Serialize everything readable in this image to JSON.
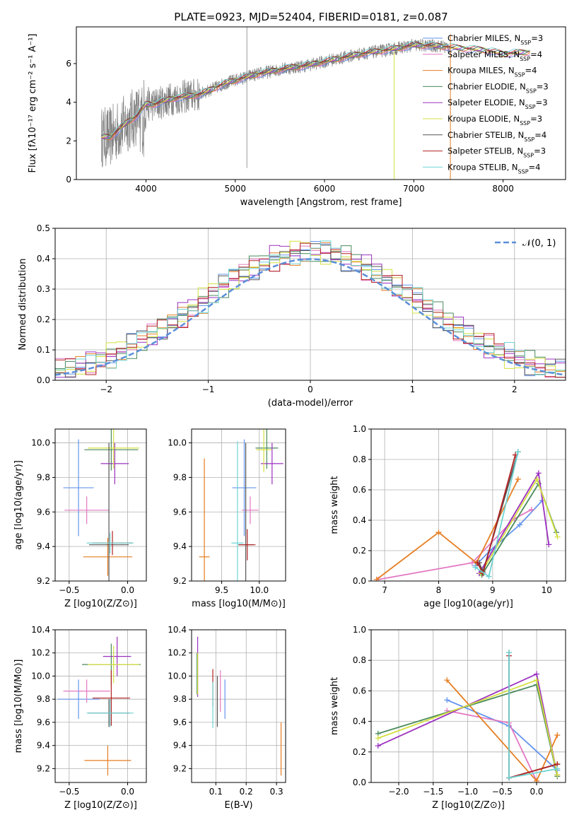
{
  "figure": {
    "title": "PLATE=0923, MJD=52404, FIBERID=0181, z=0.087",
    "model_names": [
      "Chabrier MILES",
      "Salpeter MILES",
      "Kroupa MILES",
      "Chabrier ELODIE",
      "Salpeter ELODIE",
      "Kroupa ELODIE",
      "Chabrier STELIB",
      "Salpeter STELIB",
      "Kroupa STELIB"
    ],
    "model_colors": [
      "#6495ed",
      "#e377c2",
      "#e67e22",
      "#4a8a5c",
      "#9b30c0",
      "#d4e040",
      "#555555",
      "#b22222",
      "#6fd4d4"
    ],
    "observed_color": "#808080",
    "normal_color": "#5b8fd9"
  },
  "chart_data": [
    {
      "type": "line",
      "panel": "spectrum",
      "xlabel": "wavelength [Angstrom, rest frame]",
      "ylabel": "Flux [fλ10⁻¹⁷ erg cm⁻² s⁻¹ A⁻¹]",
      "xlim": [
        3220,
        8700
      ],
      "ylim": [
        0,
        7.9
      ],
      "xticks": [
        4000,
        5000,
        6000,
        7000,
        8000
      ],
      "yticks": [
        0,
        2,
        4,
        6
      ],
      "grid": false,
      "legend_position": "top-right",
      "legend": [
        "Chabrier MILES, NSSP=3",
        "Salpeter MILES, NSSP=4",
        "Kroupa MILES, NSSP=4",
        "Chabrier ELODIE, NSSP=3",
        "Salpeter ELODIE, NSSP=3",
        "Kroupa ELODIE, NSSP=3",
        "Chabrier STELIB, NSSP=4",
        "Salpeter STELIB, NSSP=3",
        "Kroupa STELIB, NSSP=4"
      ],
      "continuum": {
        "x": [
          3500,
          3600,
          3700,
          3800,
          3900,
          4000,
          4100,
          4300,
          4600,
          4900,
          5200,
          5500,
          5800,
          6100,
          6400,
          6700,
          7000,
          7300,
          7500,
          7800,
          8000,
          8300
        ],
        "y": [
          2.2,
          2.2,
          2.6,
          3.0,
          3.3,
          3.9,
          3.9,
          4.2,
          4.4,
          5.0,
          5.4,
          5.7,
          5.9,
          6.2,
          6.5,
          6.7,
          6.95,
          6.9,
          6.8,
          6.7,
          6.5,
          6.6
        ]
      },
      "model_x_range": [
        3500,
        8300
      ],
      "observed_x_range": [
        3500,
        7400
      ]
    },
    {
      "type": "bar",
      "panel": "residual_histogram",
      "xlabel": "(data-model)/error",
      "ylabel": "Normed distribution",
      "xlim": [
        -2.5,
        2.5
      ],
      "ylim": [
        0,
        0.5
      ],
      "xticks": [
        -2,
        -1,
        0,
        1,
        2
      ],
      "yticks": [
        0.0,
        0.1,
        0.2,
        0.3,
        0.4,
        0.5
      ],
      "bin_width": 0.1,
      "grid": true,
      "legend_position": "top-right",
      "legend": [
        "𝒩(0, 1)"
      ]
    },
    {
      "type": "scatter",
      "panel": "age_vs_Z",
      "xlabel": "Z [log10(Z/Z⊙)]",
      "ylabel": "age  [log10(age/yr)]",
      "xlim": [
        -0.62,
        0.16
      ],
      "ylim": [
        9.2,
        10.08
      ],
      "xticks": [
        -0.5,
        0.0
      ],
      "yticks": [
        9.2,
        9.4,
        9.6,
        9.8,
        10.0
      ],
      "grid": true,
      "points": [
        {
          "model": 0,
          "x": -0.42,
          "y": 9.74,
          "xerr": 0.13,
          "yerr": 0.28
        },
        {
          "model": 1,
          "x": -0.35,
          "y": 9.61,
          "xerr": 0.19,
          "yerr": 0.08
        },
        {
          "model": 2,
          "x": -0.17,
          "y": 9.34,
          "xerr": 0.21,
          "yerr": 0.11
        },
        {
          "model": 3,
          "x": -0.14,
          "y": 9.96,
          "xerr": 0.23,
          "yerr": 0.12
        },
        {
          "model": 4,
          "x": -0.11,
          "y": 9.88,
          "xerr": 0.12,
          "yerr": 0.12
        },
        {
          "model": 5,
          "x": -0.12,
          "y": 9.97,
          "xerr": 0.22,
          "yerr": 0.12
        },
        {
          "model": 6,
          "x": -0.16,
          "y": 9.41,
          "xerr": 0.17,
          "yerr": 0.59
        },
        {
          "model": 7,
          "x": -0.13,
          "y": 9.42,
          "xerr": 0.17,
          "yerr": 0.07
        },
        {
          "model": 8,
          "x": -0.15,
          "y": 9.42,
          "xerr": 0.2,
          "yerr": 0.06
        }
      ]
    },
    {
      "type": "scatter",
      "panel": "age_vs_mass",
      "xlabel": "mass [log10(M/M⊙)]",
      "ylabel": "",
      "xlim": [
        9.1,
        10.35
      ],
      "ylim": [
        9.2,
        10.08
      ],
      "xticks": [
        9.5,
        10.0
      ],
      "yticks": [
        9.2,
        9.4,
        9.6,
        9.8,
        10.0
      ],
      "grid": true,
      "points": [
        {
          "model": 0,
          "x": 9.8,
          "y": 9.74,
          "xerr": 0.16,
          "yerr": 0.28
        },
        {
          "model": 1,
          "x": 9.88,
          "y": 9.61,
          "xerr": 0.11,
          "yerr": 0.08
        },
        {
          "model": 2,
          "x": 9.27,
          "y": 9.34,
          "xerr": 0.07,
          "yerr": 0.57
        },
        {
          "model": 3,
          "x": 10.1,
          "y": 9.97,
          "xerr": 0.15,
          "yerr": 0.12
        },
        {
          "model": 4,
          "x": 10.17,
          "y": 9.88,
          "xerr": 0.15,
          "yerr": 0.12
        },
        {
          "model": 5,
          "x": 10.06,
          "y": 9.96,
          "xerr": 0.1,
          "yerr": 0.13
        },
        {
          "model": 6,
          "x": 9.82,
          "y": 9.41,
          "xerr": 0.1,
          "yerr": 0.59
        },
        {
          "model": 7,
          "x": 9.84,
          "y": 9.41,
          "xerr": 0.11,
          "yerr": 0.09
        },
        {
          "model": 8,
          "x": 9.71,
          "y": 9.42,
          "xerr": 0.08,
          "yerr": 0.59
        }
      ]
    },
    {
      "type": "line",
      "panel": "mass_weight_vs_age",
      "xlabel": "age  [log10(age/yr)]",
      "ylabel": "mass weight",
      "xlim": [
        6.75,
        10.35
      ],
      "ylim": [
        0,
        1.0
      ],
      "xticks": [
        7,
        8,
        9,
        10
      ],
      "yticks": [
        0.0,
        0.2,
        0.4,
        0.6,
        0.8,
        1.0
      ],
      "grid": true,
      "series": [
        {
          "model": 0,
          "x": [
            8.68,
            8.95,
            9.5,
            9.92
          ],
          "y": [
            0.1,
            0.2,
            0.37,
            0.53
          ]
        },
        {
          "model": 1,
          "x": [
            6.88,
            8.62,
            9.4,
            9.72
          ],
          "y": [
            0.01,
            0.12,
            0.41,
            0.47
          ]
        },
        {
          "model": 2,
          "x": [
            6.85,
            8.0,
            8.7,
            9.47
          ],
          "y": [
            0.01,
            0.32,
            0.12,
            0.67
          ]
        },
        {
          "model": 3,
          "x": [
            8.8,
            9.85,
            10.18
          ],
          "y": [
            0.04,
            0.64,
            0.32
          ]
        },
        {
          "model": 4,
          "x": [
            8.75,
            9.85,
            10.04
          ],
          "y": [
            0.05,
            0.71,
            0.24
          ]
        },
        {
          "model": 5,
          "x": [
            8.78,
            9.82,
            10.2
          ],
          "y": [
            0.05,
            0.67,
            0.29
          ]
        },
        {
          "model": 6,
          "x": [
            8.75,
            8.82,
            9.47
          ],
          "y": [
            0.12,
            0.06,
            0.85
          ]
        },
        {
          "model": 7,
          "x": [
            8.72,
            8.82,
            9.42
          ],
          "y": [
            0.12,
            0.05,
            0.83
          ]
        },
        {
          "model": 8,
          "x": [
            8.68,
            8.93,
            9.47
          ],
          "y": [
            0.09,
            0.03,
            0.85
          ]
        }
      ]
    },
    {
      "type": "scatter",
      "panel": "mass_vs_Z",
      "xlabel": "Z [log10(Z/Z⊙)]",
      "ylabel": "mass [log10(M/M⊙)]",
      "xlim": [
        -0.62,
        0.16
      ],
      "ylim": [
        9.08,
        10.4
      ],
      "xticks": [
        -0.5,
        0.0
      ],
      "yticks": [
        9.2,
        9.4,
        9.6,
        9.8,
        10.0,
        10.2,
        10.4
      ],
      "grid": true,
      "points": [
        {
          "model": 0,
          "x": -0.42,
          "y": 9.8,
          "xerr": 0.18,
          "yerr": 0.17
        },
        {
          "model": 1,
          "x": -0.35,
          "y": 9.87,
          "xerr": 0.2,
          "yerr": 0.1
        },
        {
          "model": 2,
          "x": -0.17,
          "y": 9.27,
          "xerr": 0.2,
          "yerr": 0.13
        },
        {
          "model": 3,
          "x": -0.14,
          "y": 10.1,
          "xerr": 0.25,
          "yerr": 0.18
        },
        {
          "model": 4,
          "x": -0.09,
          "y": 10.17,
          "xerr": 0.12,
          "yerr": 0.17
        },
        {
          "model": 5,
          "x": -0.12,
          "y": 10.1,
          "xerr": 0.22,
          "yerr": 0.16
        },
        {
          "model": 6,
          "x": -0.16,
          "y": 9.68,
          "xerr": 0.18,
          "yerr": 0.12
        },
        {
          "model": 7,
          "x": -0.14,
          "y": 9.81,
          "xerr": 0.16,
          "yerr": 0.24
        },
        {
          "model": 8,
          "x": -0.15,
          "y": 9.68,
          "xerr": 0.2,
          "yerr": 0.12
        }
      ]
    },
    {
      "type": "scatter",
      "panel": "mass_vs_EBV",
      "xlabel": "E(B-V)",
      "ylabel": "",
      "xlim": [
        0.02,
        0.33
      ],
      "ylim": [
        9.08,
        10.4
      ],
      "xticks": [
        0.1,
        0.2,
        0.3
      ],
      "yticks": [
        9.2,
        9.4,
        9.6,
        9.8,
        10.0,
        10.2,
        10.4
      ],
      "grid": true,
      "points": [
        {
          "model": 0,
          "x": 0.13,
          "y": 9.8,
          "xerr": 0,
          "yerr": 0.17
        },
        {
          "model": 1,
          "x": 0.115,
          "y": 9.87,
          "xerr": 0,
          "yerr": 0.18
        },
        {
          "model": 2,
          "x": 0.315,
          "y": 9.37,
          "xerr": 0,
          "yerr": 0.23
        },
        {
          "model": 3,
          "x": 0.038,
          "y": 10.02,
          "xerr": 0,
          "yerr": 0.18
        },
        {
          "model": 4,
          "x": 0.04,
          "y": 10.08,
          "xerr": 0,
          "yerr": 0.26
        },
        {
          "model": 5,
          "x": 0.04,
          "y": 10.02,
          "xerr": 0,
          "yerr": 0.18
        },
        {
          "model": 6,
          "x": 0.105,
          "y": 9.78,
          "xerr": 0,
          "yerr": 0.22
        },
        {
          "model": 7,
          "x": 0.09,
          "y": 9.9,
          "xerr": 0,
          "yerr": 0.16
        },
        {
          "model": 8,
          "x": 0.09,
          "y": 9.75,
          "xerr": 0,
          "yerr": 0.2
        }
      ]
    },
    {
      "type": "line",
      "panel": "mass_weight_vs_Z",
      "xlabel": "Z [log10(Z/Z⊙)]",
      "ylabel": "mass weight",
      "xlim": [
        -2.4,
        0.42
      ],
      "ylim": [
        0,
        1.0
      ],
      "xticks": [
        -2.0,
        -1.5,
        -1.0,
        -0.5,
        0.0
      ],
      "yticks": [
        0.0,
        0.2,
        0.4,
        0.6,
        0.8,
        1.0
      ],
      "grid": true,
      "series": [
        {
          "model": 0,
          "x": [
            -1.3,
            -0.4,
            0.3
          ],
          "y": [
            0.54,
            0.37,
            0.08
          ]
        },
        {
          "model": 1,
          "x": [
            -1.3,
            -0.4,
            0.0
          ],
          "y": [
            0.47,
            0.39,
            0.01
          ]
        },
        {
          "model": 2,
          "x": [
            -1.3,
            0.0,
            0.3
          ],
          "y": [
            0.67,
            0.01,
            0.31
          ]
        },
        {
          "model": 3,
          "x": [
            -2.3,
            0.0,
            0.3
          ],
          "y": [
            0.32,
            0.64,
            0.04
          ]
        },
        {
          "model": 4,
          "x": [
            -2.3,
            0.0,
            0.3
          ],
          "y": [
            0.24,
            0.71,
            0.05
          ]
        },
        {
          "model": 5,
          "x": [
            -2.3,
            0.0,
            0.3
          ],
          "y": [
            0.29,
            0.67,
            0.05
          ]
        },
        {
          "model": 6,
          "x": [
            -0.4,
            -0.4,
            0.3
          ],
          "y": [
            0.85,
            0.03,
            0.12
          ]
        },
        {
          "model": 7,
          "x": [
            -0.4,
            -0.4,
            0.3
          ],
          "y": [
            0.83,
            0.03,
            0.12
          ]
        },
        {
          "model": 8,
          "x": [
            -0.4,
            -0.4,
            0.3
          ],
          "y": [
            0.85,
            0.03,
            0.09
          ]
        }
      ]
    }
  ]
}
